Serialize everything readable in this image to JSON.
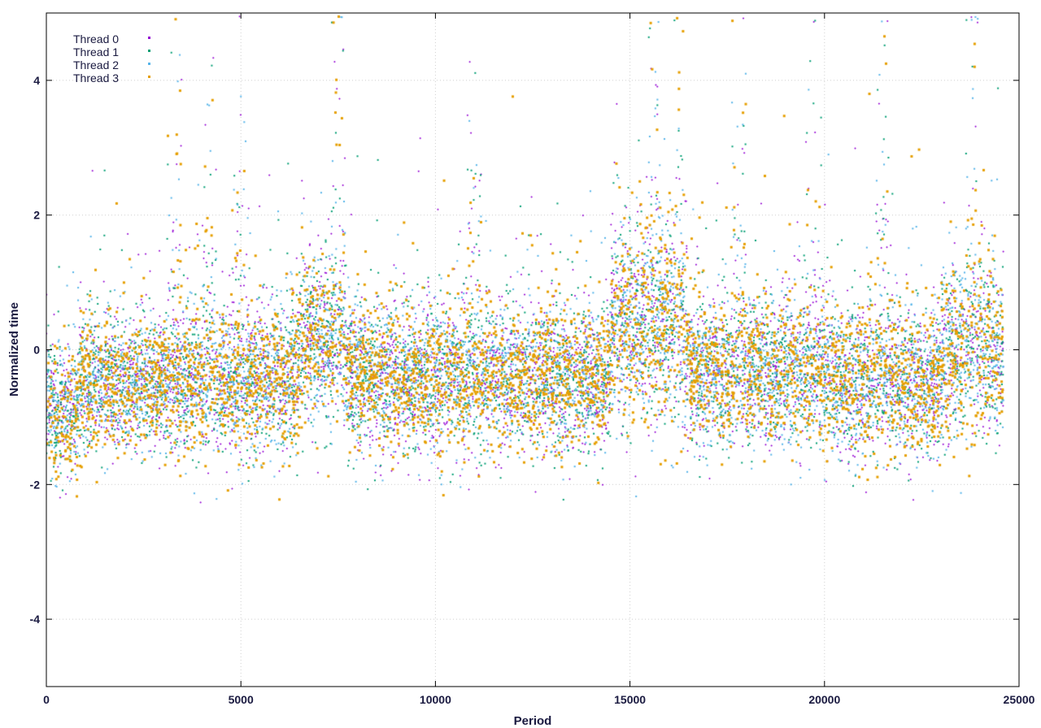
{
  "chart_data": {
    "type": "scatter",
    "title": "",
    "xlabel": "Period",
    "ylabel": "Normalized time",
    "xlim": [
      0,
      25000
    ],
    "ylim": [
      -5,
      5
    ],
    "xticks": [
      "0",
      "5000",
      "10000",
      "15000",
      "20000",
      "25000"
    ],
    "xtick_values": [
      0,
      5000,
      10000,
      15000,
      20000,
      25000
    ],
    "yticks": [
      "-4",
      "-2",
      "0",
      "2",
      "4"
    ],
    "ytick_values": [
      -4,
      -2,
      0,
      2,
      4
    ],
    "grid": true,
    "legend_position": "top-left",
    "n_points_per_series": 24600,
    "series": [
      {
        "name": "Thread 0",
        "color": "#9400d3",
        "marker": "plus"
      },
      {
        "name": "Thread 1",
        "color": "#009e73",
        "marker": "x"
      },
      {
        "name": "Thread 2",
        "color": "#56b4e9",
        "marker": "star"
      },
      {
        "name": "Thread 3",
        "color": "#e69f00",
        "marker": "square"
      }
    ],
    "segments": [
      {
        "x": [
          0,
          800
        ],
        "center": -0.9,
        "spread": 0.45
      },
      {
        "x": [
          800,
          3300
        ],
        "center": -0.5,
        "spread": 0.5
      },
      {
        "x": [
          3300,
          6500
        ],
        "center": -0.45,
        "spread": 0.55
      },
      {
        "x": [
          6500,
          7700
        ],
        "center": 0.1,
        "spread": 0.6
      },
      {
        "x": [
          7700,
          11000
        ],
        "center": -0.4,
        "spread": 0.55
      },
      {
        "x": [
          11000,
          14500
        ],
        "center": -0.4,
        "spread": 0.55
      },
      {
        "x": [
          14500,
          16400
        ],
        "center": 0.4,
        "spread": 0.75
      },
      {
        "x": [
          16400,
          20000
        ],
        "center": -0.35,
        "spread": 0.55
      },
      {
        "x": [
          20000,
          23000
        ],
        "center": -0.45,
        "spread": 0.55
      },
      {
        "x": [
          23000,
          24600
        ],
        "center": 0.0,
        "spread": 0.65
      }
    ],
    "spikes": [
      3300,
      4200,
      5000,
      7500,
      11000,
      15600,
      16300,
      17800,
      19700,
      21500,
      23800
    ]
  }
}
